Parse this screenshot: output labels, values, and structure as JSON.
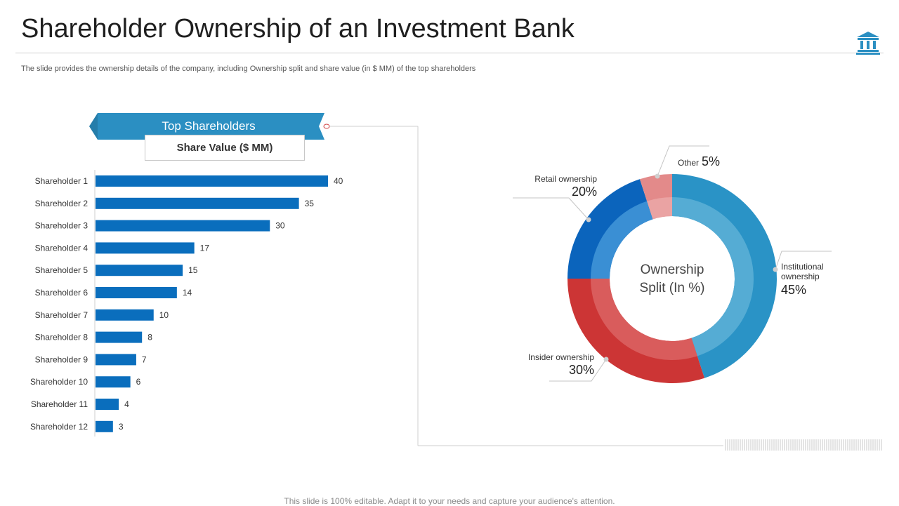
{
  "page": {
    "title": "Shareholder Ownership of an Investment Bank",
    "subtitle": "The slide provides the ownership details of the company, including Ownership split and share value (in $ MM)  of the top shareholders",
    "footer": "This slide is 100% editable. Adapt it to your needs and capture your audience's attention.",
    "icon": "bank-icon"
  },
  "colors": {
    "bar": "#0a6ebd",
    "banner": "#2b8fc2",
    "institutional": "#2a93c6",
    "institutional_inner": "#55acd4",
    "insider": "#cc3535",
    "insider_inner": "#d95c5c",
    "retail": "#0b64bc",
    "retail_inner": "#3a8fd4",
    "other": "#e38a8a",
    "other_inner": "#eaa3a3"
  },
  "chart_data": [
    {
      "type": "bar",
      "orientation": "horizontal",
      "title": "Top Shareholders",
      "subtitle": "Share Value ($ MM)",
      "categories": [
        "Shareholder 1",
        "Shareholder 2",
        "Shareholder 3",
        "Shareholder 4",
        "Shareholder 5",
        "Shareholder 6",
        "Shareholder 7",
        "Shareholder 8",
        "Shareholder 9",
        "Shareholder 10",
        "Shareholder 11",
        "Shareholder 12"
      ],
      "values": [
        40,
        35,
        30,
        17,
        15,
        14,
        10,
        8,
        7,
        6,
        4,
        3
      ],
      "xlim": [
        0,
        40
      ],
      "grid": false,
      "data_labels": true
    },
    {
      "type": "pie",
      "donut": true,
      "center_label": [
        "Ownership",
        "Split (In %)"
      ],
      "slices": [
        {
          "label": "Institutional ownership",
          "label_lines": [
            "Institutional",
            "ownership"
          ],
          "value": 45,
          "value_label": "45%",
          "color_key": "institutional"
        },
        {
          "label": "Insider ownership",
          "label_lines": [
            "Insider ownership"
          ],
          "value": 30,
          "value_label": "30%",
          "color_key": "insider"
        },
        {
          "label": "Retail ownership",
          "label_lines": [
            "Retail ownership"
          ],
          "value": 20,
          "value_label": "20%",
          "color_key": "retail"
        },
        {
          "label": "Other",
          "label_lines": [
            "Other"
          ],
          "value": 5,
          "value_label": "5%",
          "color_key": "other"
        }
      ]
    }
  ]
}
